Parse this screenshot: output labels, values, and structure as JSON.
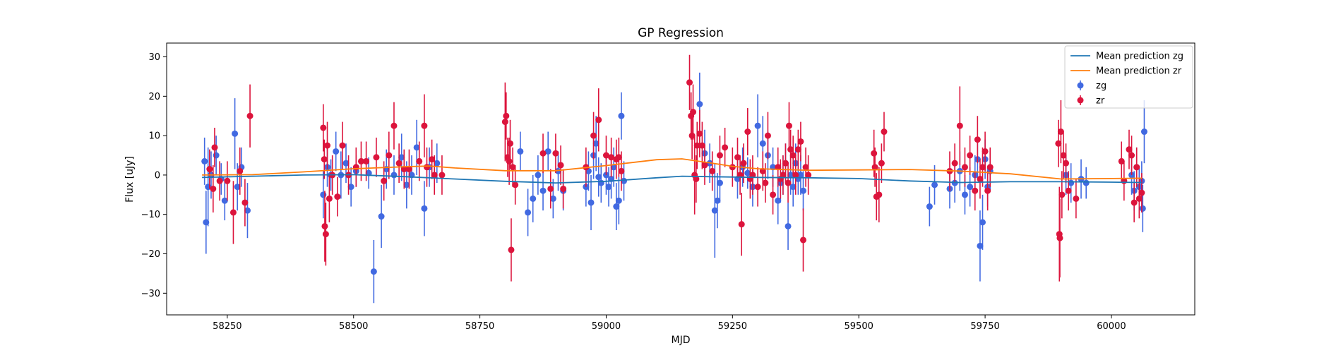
{
  "chart_data": {
    "type": "scatter",
    "title": "GP Regression",
    "xlabel": "MJD",
    "ylabel": "Flux [uJy]",
    "xlim": [
      58130,
      60165
    ],
    "ylim": [
      -35.5,
      33.5
    ],
    "xticks": [
      58250,
      58500,
      58750,
      59000,
      59250,
      59500,
      59750,
      60000
    ],
    "yticks": [
      -30,
      -20,
      -10,
      0,
      10,
      20,
      30
    ],
    "legend_position": "top-right",
    "lines": [
      {
        "name": "Mean prediction zg",
        "color": "#1f77b4",
        "x": [
          58200,
          58300,
          58400,
          58500,
          58600,
          58700,
          58800,
          58900,
          59000,
          59100,
          59150,
          59200,
          59300,
          59400,
          59500,
          59600,
          59700,
          59800,
          59900,
          60000,
          60060
        ],
        "y": [
          -0.6,
          -0.3,
          0.0,
          0.1,
          -0.4,
          -1.0,
          -1.6,
          -2.0,
          -1.6,
          -0.7,
          -0.3,
          -0.4,
          -0.6,
          -0.7,
          -0.9,
          -1.5,
          -1.9,
          -1.7,
          -1.7,
          -1.8,
          -1.9
        ]
      },
      {
        "name": "Mean prediction zr",
        "color": "#ff7f0e",
        "x": [
          58200,
          58300,
          58400,
          58500,
          58600,
          58650,
          58700,
          58800,
          58900,
          59000,
          59100,
          59150,
          59200,
          59250,
          59300,
          59400,
          59500,
          59600,
          59700,
          59800,
          59900,
          60000,
          60060
        ],
        "y": [
          0.0,
          0.1,
          0.8,
          1.6,
          2.1,
          2.3,
          1.8,
          1.1,
          1.1,
          2.4,
          3.9,
          4.1,
          3.2,
          2.2,
          1.6,
          1.2,
          1.3,
          1.4,
          1.0,
          0.3,
          -1.0,
          -0.9,
          -0.8
        ]
      }
    ],
    "series": [
      {
        "name": "zg",
        "color": "#4169e1",
        "points": [
          [
            58205,
            3.5,
            6
          ],
          [
            58208,
            -12,
            8
          ],
          [
            58212,
            -3,
            10
          ],
          [
            58218,
            0,
            6
          ],
          [
            58228,
            5,
            5
          ],
          [
            58238,
            -1,
            4
          ],
          [
            58245,
            -6.5,
            5
          ],
          [
            58265,
            10.5,
            9
          ],
          [
            58270,
            -3,
            6
          ],
          [
            58278,
            2,
            5
          ],
          [
            58290,
            -9,
            7
          ],
          [
            58440,
            -5,
            6
          ],
          [
            58448,
            2,
            5
          ],
          [
            58455,
            0,
            4
          ],
          [
            58465,
            6,
            5
          ],
          [
            58475,
            0,
            6
          ],
          [
            58485,
            3,
            5
          ],
          [
            58495,
            -3,
            5
          ],
          [
            58505,
            1,
            4
          ],
          [
            58530,
            0.5,
            4
          ],
          [
            58540,
            -24.5,
            8
          ],
          [
            58555,
            -10.5,
            8
          ],
          [
            58565,
            1.5,
            5
          ],
          [
            58580,
            0,
            5
          ],
          [
            58595,
            4.5,
            6
          ],
          [
            58605,
            -2.5,
            6
          ],
          [
            58615,
            0,
            5
          ],
          [
            58625,
            7,
            7
          ],
          [
            58640,
            -8.5,
            7
          ],
          [
            58650,
            2,
            5
          ],
          [
            58665,
            3,
            5
          ],
          [
            58830,
            6,
            5
          ],
          [
            58845,
            -9.5,
            6
          ],
          [
            58855,
            -6,
            6
          ],
          [
            58865,
            0,
            5
          ],
          [
            58875,
            -4,
            5
          ],
          [
            58885,
            6,
            5
          ],
          [
            58895,
            -6,
            5
          ],
          [
            58905,
            1,
            5
          ],
          [
            58915,
            -4,
            5
          ],
          [
            58960,
            -3,
            5
          ],
          [
            58965,
            1,
            5
          ],
          [
            58970,
            -7,
            7
          ],
          [
            58975,
            5,
            6
          ],
          [
            58980,
            8,
            7
          ],
          [
            58985,
            -0.5,
            5
          ],
          [
            58990,
            -2,
            5
          ],
          [
            59000,
            0,
            5
          ],
          [
            59005,
            -3,
            5
          ],
          [
            59010,
            -1,
            5
          ],
          [
            59015,
            2,
            5
          ],
          [
            59020,
            -8,
            6
          ],
          [
            59025,
            -6.5,
            6
          ],
          [
            59030,
            15,
            6
          ],
          [
            59035,
            -1.5,
            5
          ],
          [
            59185,
            18,
            8
          ],
          [
            59195,
            5.5,
            6
          ],
          [
            59205,
            3,
            5
          ],
          [
            59215,
            -9,
            12
          ],
          [
            59220,
            -6.5,
            7
          ],
          [
            59225,
            -2,
            5
          ],
          [
            59260,
            -1,
            5
          ],
          [
            59270,
            2,
            5
          ],
          [
            59280,
            0.5,
            4
          ],
          [
            59290,
            -3,
            5
          ],
          [
            59300,
            12.5,
            8
          ],
          [
            59310,
            8,
            7
          ],
          [
            59320,
            5,
            6
          ],
          [
            59330,
            2,
            5
          ],
          [
            59340,
            -6.5,
            6
          ],
          [
            59345,
            -2,
            5
          ],
          [
            59350,
            0,
            5
          ],
          [
            59355,
            3,
            5
          ],
          [
            59360,
            -13,
            6
          ],
          [
            59365,
            0,
            5
          ],
          [
            59370,
            -3,
            5
          ],
          [
            59375,
            3,
            5
          ],
          [
            59380,
            -1,
            4
          ],
          [
            59385,
            0,
            5
          ],
          [
            59390,
            -4,
            5
          ],
          [
            59640,
            -8,
            5
          ],
          [
            59650,
            -2.5,
            5
          ],
          [
            59680,
            -3.5,
            5
          ],
          [
            59690,
            -2,
            5
          ],
          [
            59700,
            1,
            5
          ],
          [
            59710,
            -5,
            5
          ],
          [
            59720,
            -3,
            5
          ],
          [
            59730,
            0,
            5
          ],
          [
            59735,
            4,
            5
          ],
          [
            59740,
            -18,
            9
          ],
          [
            59745,
            -12,
            7
          ],
          [
            59750,
            4,
            5
          ],
          [
            59755,
            -3,
            5
          ],
          [
            59760,
            1,
            5
          ],
          [
            59910,
            0,
            5
          ],
          [
            59920,
            -2,
            5
          ],
          [
            59940,
            -1,
            5
          ],
          [
            59950,
            -2,
            4
          ],
          [
            60040,
            0,
            5
          ],
          [
            60045,
            -4,
            5
          ],
          [
            60050,
            2,
            5
          ],
          [
            60055,
            -3,
            5
          ],
          [
            60060,
            -1.5,
            5
          ],
          [
            60062,
            -8.5,
            6
          ],
          [
            60065,
            11,
            8
          ]
        ]
      },
      {
        "name": "zr",
        "color": "#dc143c",
        "points": [
          [
            58215,
            1.5,
            5
          ],
          [
            58222,
            -3.5,
            6
          ],
          [
            58225,
            7,
            5
          ],
          [
            58235,
            -1.5,
            5
          ],
          [
            58250,
            -1.5,
            5
          ],
          [
            58262,
            -9.5,
            8
          ],
          [
            58275,
            1,
            6
          ],
          [
            58285,
            -7,
            6
          ],
          [
            58295,
            15,
            8
          ],
          [
            58440,
            12,
            6
          ],
          [
            58442,
            4,
            5
          ],
          [
            58443,
            -13,
            9
          ],
          [
            58445,
            -15,
            8
          ],
          [
            58448,
            7.5,
            6
          ],
          [
            58452,
            -6,
            6
          ],
          [
            58458,
            0,
            5
          ],
          [
            58468,
            -5.5,
            5
          ],
          [
            58478,
            7.5,
            6
          ],
          [
            58490,
            0,
            5
          ],
          [
            58505,
            2,
            5
          ],
          [
            58515,
            3.5,
            5
          ],
          [
            58525,
            3.5,
            5
          ],
          [
            58545,
            4.5,
            5
          ],
          [
            58560,
            -1.5,
            5
          ],
          [
            58570,
            5,
            6
          ],
          [
            58580,
            12.5,
            6
          ],
          [
            58590,
            3,
            5
          ],
          [
            58600,
            1.5,
            5
          ],
          [
            58610,
            1.5,
            5
          ],
          [
            58630,
            3.5,
            5
          ],
          [
            58640,
            12.5,
            8
          ],
          [
            58645,
            2,
            5
          ],
          [
            58655,
            4,
            5
          ],
          [
            58660,
            0,
            5
          ],
          [
            58675,
            0,
            5
          ],
          [
            58800,
            13.5,
            10
          ],
          [
            58802,
            15,
            6
          ],
          [
            58805,
            4.5,
            5
          ],
          [
            58808,
            3.5,
            6
          ],
          [
            58810,
            8,
            6
          ],
          [
            58812,
            -19,
            8
          ],
          [
            58815,
            2,
            5
          ],
          [
            58820,
            -2.5,
            5
          ],
          [
            58875,
            5.5,
            5
          ],
          [
            58890,
            -3.5,
            5
          ],
          [
            58900,
            5.5,
            5
          ],
          [
            58910,
            2.5,
            5
          ],
          [
            58915,
            -3.5,
            5
          ],
          [
            58960,
            2,
            5
          ],
          [
            58975,
            10,
            6
          ],
          [
            58985,
            14,
            8
          ],
          [
            59000,
            5,
            5
          ],
          [
            59010,
            4.5,
            5
          ],
          [
            59020,
            4,
            5
          ],
          [
            59025,
            4.5,
            5
          ],
          [
            59030,
            1,
            5
          ],
          [
            59165,
            23.5,
            7
          ],
          [
            59168,
            15,
            6
          ],
          [
            59170,
            10,
            6
          ],
          [
            59172,
            16,
            7
          ],
          [
            59175,
            0,
            10
          ],
          [
            59178,
            -1,
            6
          ],
          [
            59180,
            7.5,
            6
          ],
          [
            59185,
            10.5,
            6
          ],
          [
            59190,
            7.5,
            6
          ],
          [
            59195,
            2.5,
            5
          ],
          [
            59210,
            1,
            5
          ],
          [
            59225,
            5,
            5
          ],
          [
            59235,
            7,
            5
          ],
          [
            59250,
            2,
            5
          ],
          [
            59260,
            4.5,
            5
          ],
          [
            59265,
            0,
            5
          ],
          [
            59268,
            -12.5,
            8
          ],
          [
            59272,
            3,
            5
          ],
          [
            59280,
            11,
            6
          ],
          [
            59285,
            -1,
            5
          ],
          [
            59290,
            0,
            5
          ],
          [
            59300,
            -3,
            5
          ],
          [
            59310,
            1,
            5
          ],
          [
            59315,
            -2,
            5
          ],
          [
            59320,
            10,
            6
          ],
          [
            59330,
            -5,
            5
          ],
          [
            59340,
            2,
            5
          ],
          [
            59345,
            -1,
            5
          ],
          [
            59350,
            0,
            5
          ],
          [
            59355,
            3,
            5
          ],
          [
            59360,
            -2,
            5
          ],
          [
            59362,
            12.5,
            6
          ],
          [
            59365,
            6.5,
            5
          ],
          [
            59370,
            5,
            5
          ],
          [
            59375,
            0,
            5
          ],
          [
            59380,
            6.5,
            5
          ],
          [
            59385,
            8.5,
            5
          ],
          [
            59390,
            -16.5,
            8
          ],
          [
            59395,
            2,
            5
          ],
          [
            59400,
            0,
            5
          ],
          [
            59530,
            5.5,
            6
          ],
          [
            59532,
            2,
            5
          ],
          [
            59535,
            -5.5,
            6
          ],
          [
            59540,
            -5,
            7
          ],
          [
            59545,
            3,
            5
          ],
          [
            59550,
            11,
            5
          ],
          [
            59680,
            1,
            5
          ],
          [
            59690,
            3,
            5
          ],
          [
            59700,
            12.5,
            10
          ],
          [
            59710,
            2,
            5
          ],
          [
            59720,
            5,
            5
          ],
          [
            59730,
            -4,
            5
          ],
          [
            59735,
            9,
            6
          ],
          [
            59740,
            -1,
            5
          ],
          [
            59745,
            2,
            5
          ],
          [
            59750,
            6,
            5
          ],
          [
            59755,
            -4,
            5
          ],
          [
            59760,
            2,
            5
          ],
          [
            59895,
            8,
            6
          ],
          [
            59897,
            -15,
            12
          ],
          [
            59898,
            -16,
            10
          ],
          [
            59900,
            11,
            8
          ],
          [
            59902,
            -5,
            6
          ],
          [
            59905,
            5,
            6
          ],
          [
            59910,
            3,
            5
          ],
          [
            59915,
            -4,
            5
          ],
          [
            59930,
            -6,
            5
          ],
          [
            60020,
            3.5,
            5
          ],
          [
            60025,
            -1.5,
            5
          ],
          [
            60035,
            6.5,
            5
          ],
          [
            60040,
            5,
            5
          ],
          [
            60045,
            -7,
            5
          ],
          [
            60050,
            2,
            5
          ],
          [
            60055,
            -6,
            5
          ],
          [
            60060,
            -4.5,
            5
          ]
        ]
      }
    ]
  }
}
